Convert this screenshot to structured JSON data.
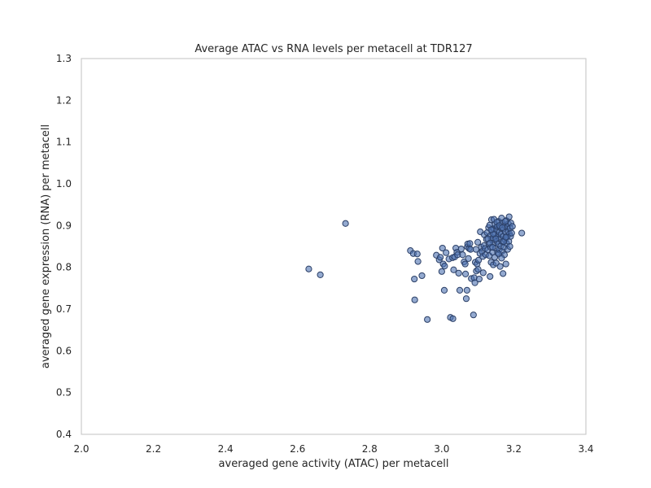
{
  "chart_data": {
    "type": "scatter",
    "title": "Average ATAC vs RNA levels per metacell at TDR127",
    "xlabel": "averaged gene activity (ATAC) per metacell",
    "ylabel": "averaged gene expression (RNA) per metacell",
    "xlim": [
      2.0,
      3.4
    ],
    "ylim": [
      0.4,
      1.3
    ],
    "xticks": [
      "2.0",
      "2.2",
      "2.4",
      "2.6",
      "2.8",
      "3.0",
      "3.2",
      "3.4"
    ],
    "yticks": [
      "0.4",
      "0.5",
      "0.6",
      "0.7",
      "0.8",
      "0.9",
      "1.0",
      "1.1",
      "1.2",
      "1.3"
    ],
    "grid": false,
    "marker_color": "#4c72b0",
    "marker_edge_color": "#2b3f66",
    "points": [
      [
        2.631,
        0.796
      ],
      [
        2.663,
        0.782
      ],
      [
        2.733,
        0.905
      ],
      [
        2.913,
        0.84
      ],
      [
        2.921,
        0.833
      ],
      [
        2.932,
        0.832
      ],
      [
        2.924,
        0.772
      ],
      [
        2.934,
        0.814
      ],
      [
        2.945,
        0.78
      ],
      [
        2.925,
        0.722
      ],
      [
        2.96,
        0.675
      ],
      [
        2.985,
        0.829
      ],
      [
        2.993,
        0.818
      ],
      [
        2.996,
        0.824
      ],
      [
        3.002,
        0.846
      ],
      [
        3.0,
        0.79
      ],
      [
        3.004,
        0.808
      ],
      [
        3.007,
        0.745
      ],
      [
        3.008,
        0.803
      ],
      [
        3.012,
        0.835
      ],
      [
        3.02,
        0.82
      ],
      [
        3.024,
        0.68
      ],
      [
        3.031,
        0.677
      ],
      [
        3.03,
        0.823
      ],
      [
        3.033,
        0.794
      ],
      [
        3.036,
        0.825
      ],
      [
        3.039,
        0.846
      ],
      [
        3.042,
        0.836
      ],
      [
        3.044,
        0.83
      ],
      [
        3.047,
        0.786
      ],
      [
        3.05,
        0.745
      ],
      [
        3.054,
        0.844
      ],
      [
        3.058,
        0.83
      ],
      [
        3.062,
        0.813
      ],
      [
        3.065,
        0.808
      ],
      [
        3.066,
        0.784
      ],
      [
        3.068,
        0.725
      ],
      [
        3.07,
        0.745
      ],
      [
        3.071,
        0.849
      ],
      [
        3.072,
        0.856
      ],
      [
        3.074,
        0.821
      ],
      [
        3.076,
        0.845
      ],
      [
        3.078,
        0.857
      ],
      [
        3.08,
        0.843
      ],
      [
        3.082,
        0.773
      ],
      [
        3.088,
        0.686
      ],
      [
        3.09,
        0.775
      ],
      [
        3.092,
        0.763
      ],
      [
        3.093,
        0.812
      ],
      [
        3.095,
        0.843
      ],
      [
        3.096,
        0.791
      ],
      [
        3.098,
        0.808
      ],
      [
        3.1,
        0.86
      ],
      [
        3.101,
        0.795
      ],
      [
        3.102,
        0.817
      ],
      [
        3.104,
        0.772
      ],
      [
        3.106,
        0.833
      ],
      [
        3.107,
        0.885
      ],
      [
        3.11,
        0.848
      ],
      [
        3.112,
        0.838
      ],
      [
        3.114,
        0.826
      ],
      [
        3.115,
        0.787
      ],
      [
        3.117,
        0.852
      ],
      [
        3.118,
        0.878
      ],
      [
        3.12,
        0.845
      ],
      [
        3.122,
        0.83
      ],
      [
        3.124,
        0.867
      ],
      [
        3.126,
        0.883
      ],
      [
        3.128,
        0.842
      ],
      [
        3.13,
        0.895
      ],
      [
        3.131,
        0.856
      ],
      [
        3.132,
        0.828
      ],
      [
        3.133,
        0.901
      ],
      [
        3.134,
        0.778
      ],
      [
        3.135,
        0.876
      ],
      [
        3.136,
        0.848
      ],
      [
        3.137,
        0.812
      ],
      [
        3.138,
        0.914
      ],
      [
        3.139,
        0.866
      ],
      [
        3.14,
        0.889
      ],
      [
        3.141,
        0.836
      ],
      [
        3.142,
        0.871
      ],
      [
        3.143,
        0.806
      ],
      [
        3.144,
        0.893
      ],
      [
        3.145,
        0.858
      ],
      [
        3.146,
        0.88
      ],
      [
        3.147,
        0.824
      ],
      [
        3.148,
        0.903
      ],
      [
        3.149,
        0.846
      ],
      [
        3.15,
        0.87
      ],
      [
        3.151,
        0.81
      ],
      [
        3.152,
        0.888
      ],
      [
        3.153,
        0.862
      ],
      [
        3.154,
        0.898
      ],
      [
        3.155,
        0.835
      ],
      [
        3.156,
        0.876
      ],
      [
        3.157,
        0.856
      ],
      [
        3.158,
        0.91
      ],
      [
        3.159,
        0.842
      ],
      [
        3.16,
        0.884
      ],
      [
        3.161,
        0.868
      ],
      [
        3.162,
        0.802
      ],
      [
        3.163,
        0.895
      ],
      [
        3.164,
        0.851
      ],
      [
        3.165,
        0.879
      ],
      [
        3.166,
        0.918
      ],
      [
        3.167,
        0.838
      ],
      [
        3.168,
        0.862
      ],
      [
        3.169,
        0.906
      ],
      [
        3.17,
        0.785
      ],
      [
        3.171,
        0.874
      ],
      [
        3.172,
        0.892
      ],
      [
        3.173,
        0.848
      ],
      [
        3.174,
        0.83
      ],
      [
        3.175,
        0.9
      ],
      [
        3.176,
        0.866
      ],
      [
        3.177,
        0.884
      ],
      [
        3.178,
        0.808
      ],
      [
        3.179,
        0.912
      ],
      [
        3.18,
        0.857
      ],
      [
        3.181,
        0.873
      ],
      [
        3.182,
        0.896
      ],
      [
        3.183,
        0.843
      ],
      [
        3.184,
        0.886
      ],
      [
        3.185,
        0.904
      ],
      [
        3.186,
        0.862
      ],
      [
        3.187,
        0.921
      ],
      [
        3.188,
        0.88
      ],
      [
        3.189,
        0.85
      ],
      [
        3.19,
        0.894
      ],
      [
        3.191,
        0.874
      ],
      [
        3.192,
        0.906
      ],
      [
        3.194,
        0.882
      ],
      [
        3.196,
        0.898
      ],
      [
        3.222,
        0.882
      ],
      [
        3.145,
        0.915
      ],
      [
        3.153,
        0.908
      ],
      [
        3.16,
        0.9
      ],
      [
        3.168,
        0.895
      ],
      [
        3.176,
        0.91
      ],
      [
        3.128,
        0.868
      ],
      [
        3.134,
        0.858
      ],
      [
        3.141,
        0.848
      ],
      [
        3.158,
        0.832
      ],
      [
        3.166,
        0.822
      ],
      [
        3.172,
        0.862
      ],
      [
        3.178,
        0.872
      ],
      [
        3.15,
        0.868
      ],
      [
        3.143,
        0.88
      ],
      [
        3.137,
        0.89
      ]
    ]
  }
}
